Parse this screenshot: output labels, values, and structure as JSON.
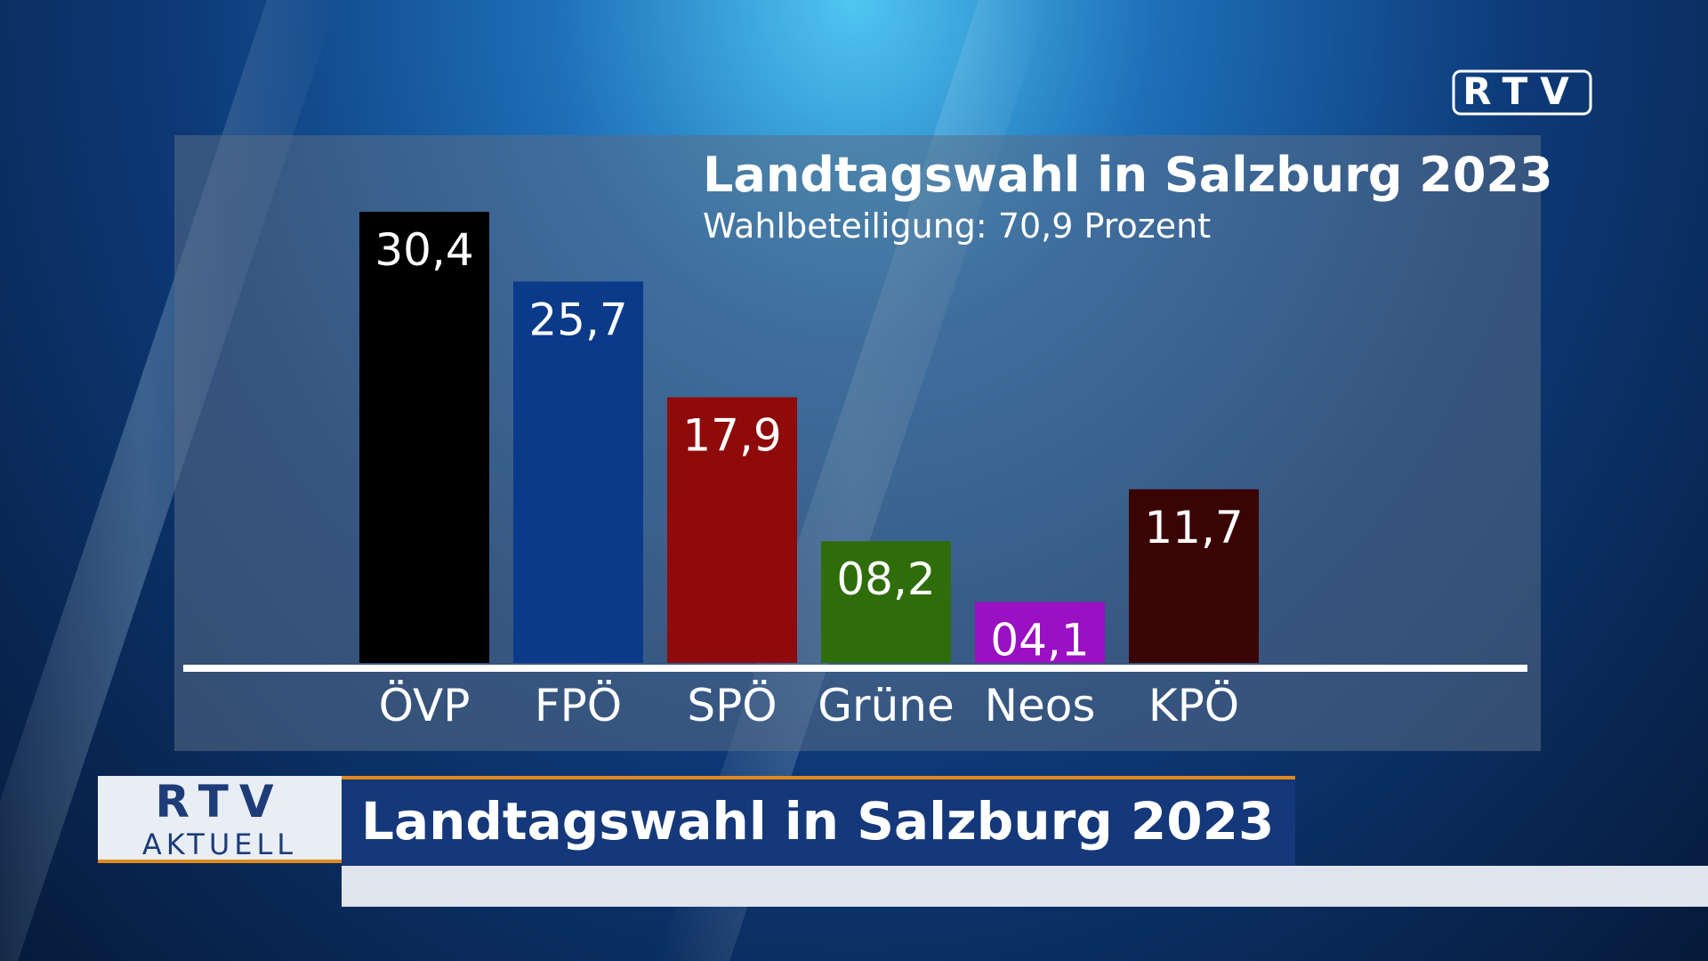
{
  "broadcast": {
    "logo": "RTV",
    "lower_third": {
      "brand": "RTV",
      "brand_sub": "AKTUELL",
      "headline": "Landtagswahl in Salzburg 2023"
    }
  },
  "chart_data": {
    "type": "bar",
    "title": "Landtagswahl in Salzburg 2023",
    "subtitle": "Wahlbeteiligung: 70,9 Prozent",
    "categories": [
      "ÖVP",
      "FPÖ",
      "SPÖ",
      "Grüne",
      "Neos",
      "KPÖ"
    ],
    "values": [
      30.4,
      25.7,
      17.9,
      8.2,
      4.1,
      11.7
    ],
    "value_labels": [
      "30,4",
      "25,7",
      "17,9",
      "08,2",
      "04,1",
      "11,7"
    ],
    "colors": [
      "#000000",
      "#0b3a8a",
      "#8f0a0a",
      "#2f6d0b",
      "#9a10c2",
      "#3b0404"
    ]
  }
}
